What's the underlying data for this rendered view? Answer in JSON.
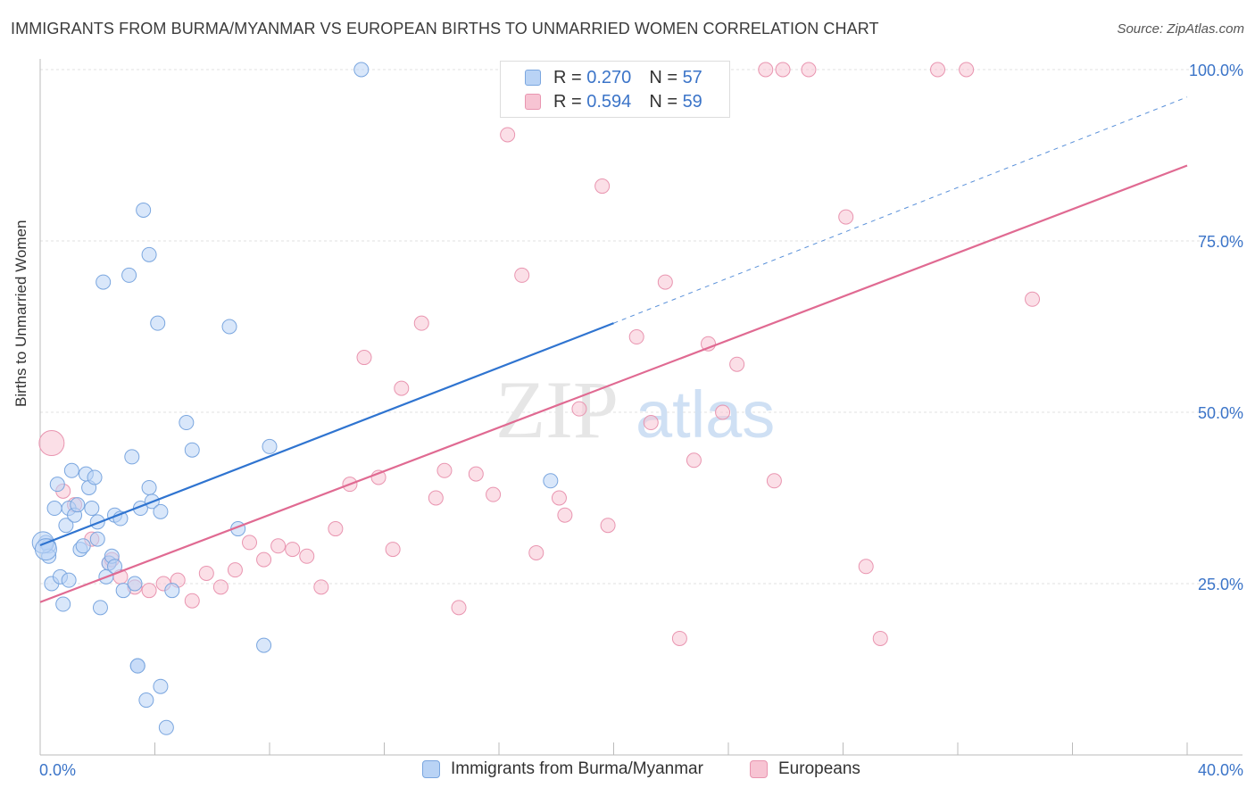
{
  "title": "IMMIGRANTS FROM BURMA/MYANMAR VS EUROPEAN BIRTHS TO UNMARRIED WOMEN CORRELATION CHART",
  "source": "Source: ZipAtlas.com",
  "watermark": "ZIPatlas",
  "colors": {
    "blue_fill": "#b9d3f5",
    "blue_stroke": "#7aa6df",
    "blue_line": "#2f74d0",
    "pink_fill": "#f7c4d3",
    "pink_stroke": "#e995b0",
    "pink_line": "#e06a92",
    "tick_label": "#3b74c8"
  },
  "legend_top": {
    "rows": [
      {
        "r_label": "R =",
        "r_value": "0.270",
        "n_label": "N =",
        "n_value": "57",
        "series": "blue"
      },
      {
        "r_label": "R =",
        "r_value": "0.594",
        "n_label": "N =",
        "n_value": "59",
        "series": "pink"
      }
    ]
  },
  "legend_bottom": [
    {
      "label": "Immigrants from Burma/Myanmar",
      "series": "blue"
    },
    {
      "label": "Europeans",
      "series": "pink"
    }
  ],
  "chart_data": {
    "type": "scatter",
    "title": "IMMIGRANTS FROM BURMA/MYANMAR VS EUROPEAN BIRTHS TO UNMARRIED WOMEN CORRELATION CHART",
    "xlabel": "",
    "ylabel": "Births to Unmarried Women",
    "xlim": [
      0,
      40
    ],
    "ylim": [
      0,
      100
    ],
    "x_tick_labels": [
      "0.0%",
      "40.0%"
    ],
    "y_tick_values": [
      25,
      50,
      75,
      100
    ],
    "y_tick_labels": [
      "25.0%",
      "50.0%",
      "75.0%",
      "100.0%"
    ],
    "grid": true,
    "series": [
      {
        "name": "Immigrants from Burma/Myanmar",
        "color": "blue",
        "r": 0.27,
        "n": 57,
        "trend": {
          "x0": 0,
          "y0": 30.6,
          "x1": 20,
          "y1": 63.0,
          "dashed_to_x": 40,
          "dashed_to_y": 96.0
        },
        "points": [
          [
            0.2,
            31.0
          ],
          [
            0.3,
            30.5
          ],
          [
            0.3,
            29.0
          ],
          [
            0.4,
            25.0
          ],
          [
            0.5,
            36.0
          ],
          [
            0.6,
            39.5
          ],
          [
            0.7,
            26.0
          ],
          [
            0.8,
            22.0
          ],
          [
            0.9,
            33.5
          ],
          [
            1.0,
            36.0
          ],
          [
            1.0,
            25.5
          ],
          [
            1.1,
            41.5
          ],
          [
            1.2,
            35.0
          ],
          [
            1.3,
            36.5
          ],
          [
            1.4,
            30.0
          ],
          [
            1.5,
            30.5
          ],
          [
            1.6,
            41.0
          ],
          [
            1.7,
            39.0
          ],
          [
            1.8,
            36.0
          ],
          [
            1.9,
            40.5
          ],
          [
            2.0,
            31.5
          ],
          [
            2.0,
            34.0
          ],
          [
            2.1,
            21.5
          ],
          [
            2.2,
            69.0
          ],
          [
            2.3,
            26.0
          ],
          [
            2.4,
            28.0
          ],
          [
            2.5,
            29.0
          ],
          [
            2.6,
            27.5
          ],
          [
            2.6,
            35.0
          ],
          [
            2.8,
            34.5
          ],
          [
            2.9,
            24.0
          ],
          [
            3.1,
            70.0
          ],
          [
            3.2,
            43.5
          ],
          [
            3.3,
            25.0
          ],
          [
            3.4,
            13.0
          ],
          [
            3.4,
            13.0
          ],
          [
            3.5,
            36.0
          ],
          [
            3.6,
            79.5
          ],
          [
            3.7,
            8.0
          ],
          [
            3.8,
            73.0
          ],
          [
            3.8,
            39.0
          ],
          [
            3.9,
            37.0
          ],
          [
            4.1,
            63.0
          ],
          [
            4.2,
            10.0
          ],
          [
            4.2,
            35.5
          ],
          [
            4.4,
            4.0
          ],
          [
            4.6,
            24.0
          ],
          [
            5.1,
            48.5
          ],
          [
            5.3,
            44.5
          ],
          [
            6.6,
            62.5
          ],
          [
            6.9,
            33.0
          ],
          [
            7.8,
            16.0
          ],
          [
            8.0,
            45.0
          ],
          [
            11.2,
            100.0
          ],
          [
            17.8,
            40.0
          ],
          [
            0.1,
            31.0
          ],
          [
            0.2,
            30.0
          ]
        ]
      },
      {
        "name": "Europeans",
        "color": "pink",
        "r": 0.594,
        "n": 59,
        "trend": {
          "x0": 0,
          "y0": 22.3,
          "x1": 40,
          "y1": 86.0
        },
        "points": [
          [
            0.4,
            45.5
          ],
          [
            0.8,
            38.5
          ],
          [
            1.2,
            36.5
          ],
          [
            1.8,
            31.5
          ],
          [
            2.4,
            28.0
          ],
          [
            2.8,
            26.0
          ],
          [
            3.3,
            24.5
          ],
          [
            3.8,
            24.0
          ],
          [
            4.3,
            25.0
          ],
          [
            4.8,
            25.5
          ],
          [
            5.3,
            22.5
          ],
          [
            5.8,
            26.5
          ],
          [
            6.3,
            24.5
          ],
          [
            6.8,
            27.0
          ],
          [
            7.3,
            31.0
          ],
          [
            7.8,
            28.5
          ],
          [
            8.3,
            30.5
          ],
          [
            8.8,
            30.0
          ],
          [
            9.3,
            29.0
          ],
          [
            9.8,
            24.5
          ],
          [
            10.3,
            33.0
          ],
          [
            10.8,
            39.5
          ],
          [
            11.3,
            58.0
          ],
          [
            11.8,
            40.5
          ],
          [
            12.3,
            30.0
          ],
          [
            12.6,
            53.5
          ],
          [
            13.3,
            63.0
          ],
          [
            13.8,
            37.5
          ],
          [
            14.1,
            41.5
          ],
          [
            14.6,
            21.5
          ],
          [
            15.2,
            41.0
          ],
          [
            15.8,
            38.0
          ],
          [
            16.3,
            90.5
          ],
          [
            16.8,
            70.0
          ],
          [
            17.3,
            29.5
          ],
          [
            18.1,
            37.5
          ],
          [
            18.3,
            35.0
          ],
          [
            18.8,
            50.5
          ],
          [
            19.6,
            83.0
          ],
          [
            19.8,
            33.5
          ],
          [
            20.8,
            61.0
          ],
          [
            21.3,
            48.5
          ],
          [
            21.8,
            69.0
          ],
          [
            22.3,
            17.0
          ],
          [
            22.8,
            43.0
          ],
          [
            23.3,
            60.0
          ],
          [
            23.8,
            50.0
          ],
          [
            24.3,
            57.0
          ],
          [
            25.3,
            100.0
          ],
          [
            25.6,
            40.0
          ],
          [
            25.9,
            100.0
          ],
          [
            26.8,
            100.0
          ],
          [
            28.1,
            78.5
          ],
          [
            28.8,
            27.5
          ],
          [
            29.3,
            17.0
          ],
          [
            31.3,
            100.0
          ],
          [
            32.3,
            100.0
          ],
          [
            34.6,
            66.5
          ],
          [
            2.5,
            28.5
          ]
        ]
      }
    ]
  },
  "axis_labels": {
    "x_min": "0.0%",
    "x_max": "40.0%",
    "y_ticks": [
      "25.0%",
      "50.0%",
      "75.0%",
      "100.0%"
    ]
  }
}
